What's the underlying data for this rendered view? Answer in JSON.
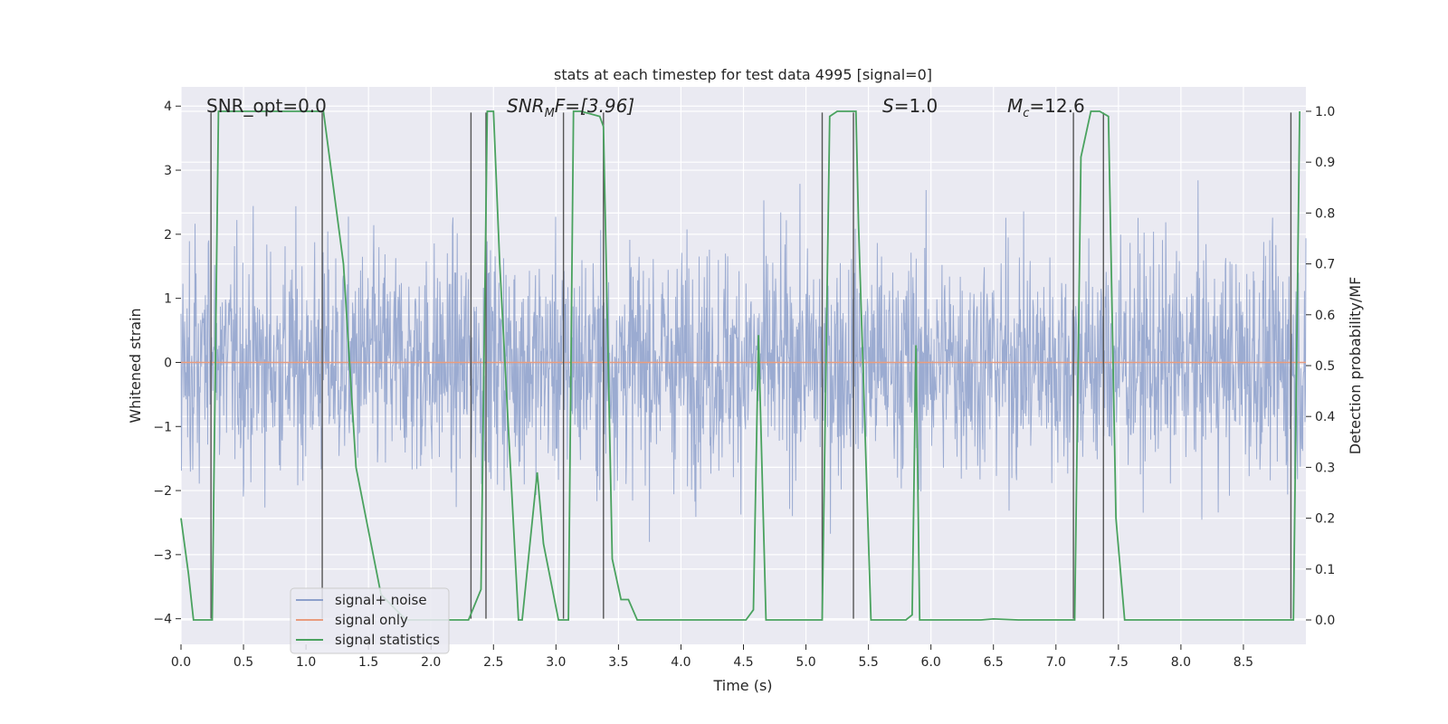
{
  "chart_data": {
    "type": "line",
    "title": "stats at each timestep for test data 4995 [signal=0]",
    "xlabel": "Time (s)",
    "ylabel_left": "Whitened strain",
    "ylabel_right": "Detection probability/MF",
    "xlim": [
      0.0,
      9.0
    ],
    "ylim_left": [
      -4.4,
      4.3
    ],
    "ylim_right": [
      -0.048,
      1.048
    ],
    "xticks": [
      0.0,
      0.5,
      1.0,
      1.5,
      2.0,
      2.5,
      3.0,
      3.5,
      4.0,
      4.5,
      5.0,
      5.5,
      6.0,
      6.5,
      7.0,
      7.5,
      8.0,
      8.5
    ],
    "xtick_labels": [
      "0.0",
      "0.5",
      "1.0",
      "1.5",
      "2.0",
      "2.5",
      "3.0",
      "3.5",
      "4.0",
      "4.5",
      "5.0",
      "5.5",
      "6.0",
      "6.5",
      "7.0",
      "7.5",
      "8.0",
      "8.5"
    ],
    "yticks_left": [
      -4,
      -3,
      -2,
      -1,
      0,
      1,
      2,
      3,
      4
    ],
    "ytick_labels_left": [
      "−4",
      "−3",
      "−2",
      "−1",
      "0",
      "1",
      "2",
      "3",
      "4"
    ],
    "yticks_right": [
      0.0,
      0.1,
      0.2,
      0.3,
      0.4,
      0.5,
      0.6,
      0.7,
      0.8,
      0.9,
      1.0
    ],
    "ytick_labels_right": [
      "0.0",
      "0.1",
      "0.2",
      "0.3",
      "0.4",
      "0.5",
      "0.6",
      "0.7",
      "0.8",
      "0.9",
      "1.0"
    ],
    "annotations": {
      "snr_opt": "SNR_opt=0.0",
      "snr_mf_base": "SNR",
      "snr_mf_sub": "M",
      "snr_mf_tail": "F=[3.96]",
      "s_base": "S",
      "s_tail": "=1.0",
      "mc_base": "M",
      "mc_sub": "c",
      "mc_tail": "=12.6"
    },
    "legend": {
      "position": "lower-left",
      "entries": [
        "signal+ noise",
        "signal only",
        "signal statistics"
      ]
    },
    "colors": {
      "noise": "#8da0cb",
      "signal_only": "#e99c7e",
      "statistics": "#4aa25f",
      "vlines": "#555555",
      "plot_bg": "#eaeaf2",
      "grid": "#ffffff"
    },
    "series": [
      {
        "name": "signal+ noise",
        "axis": "left",
        "description_envelope": "dense whitened noise fluctuating mostly within about ±2.5, peaks near ±4",
        "noise_sigma": 1.0
      },
      {
        "name": "signal only",
        "axis": "left",
        "constant": 0.0
      },
      {
        "name": "signal statistics",
        "axis": "right",
        "x": [
          0.0,
          0.06,
          0.1,
          0.24,
          0.25,
          0.3,
          1.12,
          1.14,
          1.3,
          1.4,
          1.6,
          1.8,
          2.0,
          2.2,
          2.3,
          2.4,
          2.45,
          2.5,
          2.55,
          2.7,
          2.73,
          2.85,
          2.9,
          3.02,
          3.05,
          3.1,
          3.14,
          3.2,
          3.35,
          3.38,
          3.45,
          3.52,
          3.58,
          3.65,
          3.75,
          4.0,
          4.2,
          4.45,
          4.52,
          4.58,
          4.62,
          4.68,
          4.72,
          5.12,
          5.13,
          5.19,
          5.25,
          5.4,
          5.42,
          5.52,
          5.8,
          5.85,
          5.88,
          5.91,
          6.0,
          6.4,
          6.5,
          6.7,
          7.12,
          7.15,
          7.2,
          7.28,
          7.35,
          7.42,
          7.48,
          7.55,
          8.0,
          8.5,
          8.85,
          8.9,
          8.95
        ],
        "y": [
          0.2,
          0.09,
          0.0,
          0.0,
          0.0,
          1.0,
          1.0,
          1.0,
          0.7,
          0.3,
          0.05,
          0.0,
          0.0,
          0.0,
          0.0,
          0.06,
          1.0,
          1.0,
          0.7,
          0.0,
          0.0,
          0.29,
          0.15,
          0.0,
          0.0,
          0.0,
          1.0,
          1.0,
          0.99,
          0.97,
          0.12,
          0.04,
          0.04,
          0.0,
          0.0,
          0.0,
          0.0,
          0.0,
          0.0,
          0.02,
          0.56,
          0.0,
          0.0,
          0.0,
          0.0,
          0.99,
          1.0,
          1.0,
          0.78,
          0.0,
          0.0,
          0.01,
          0.54,
          0.0,
          0.0,
          0.0,
          0.002,
          0.0,
          0.0,
          0.0,
          0.91,
          1.0,
          1.0,
          0.99,
          0.2,
          0.0,
          0.0,
          0.0,
          0.0,
          0.0,
          1.0
        ]
      }
    ],
    "vertical_lines": [
      {
        "x": 0.24,
        "y_top": 3.9,
        "y_bottom": -4.0
      },
      {
        "x": 1.13,
        "y_top": 3.9,
        "y_bottom": -4.0
      },
      {
        "x": 2.32,
        "y_top": 3.9,
        "y_bottom": -4.0
      },
      {
        "x": 2.44,
        "y_top": 3.9,
        "y_bottom": -4.0
      },
      {
        "x": 3.06,
        "y_top": 3.9,
        "y_bottom": -4.0
      },
      {
        "x": 3.38,
        "y_top": 3.9,
        "y_bottom": -4.0
      },
      {
        "x": 5.13,
        "y_top": 3.9,
        "y_bottom": -4.0
      },
      {
        "x": 5.38,
        "y_top": 3.9,
        "y_bottom": -4.0
      },
      {
        "x": 7.14,
        "y_top": 3.9,
        "y_bottom": -4.0
      },
      {
        "x": 7.38,
        "y_top": 3.9,
        "y_bottom": -4.0
      },
      {
        "x": 8.88,
        "y_top": 3.9,
        "y_bottom": -4.0
      }
    ]
  }
}
